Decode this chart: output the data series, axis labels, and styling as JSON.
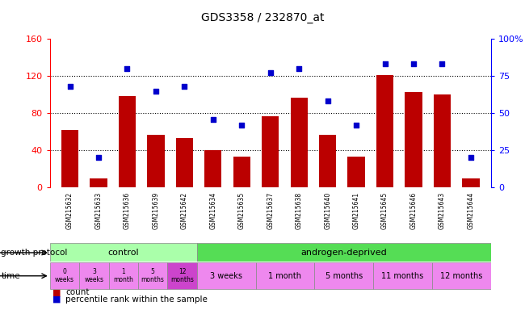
{
  "title": "GDS3358 / 232870_at",
  "samples": [
    "GSM215632",
    "GSM215633",
    "GSM215636",
    "GSM215639",
    "GSM215642",
    "GSM215634",
    "GSM215635",
    "GSM215637",
    "GSM215638",
    "GSM215640",
    "GSM215641",
    "GSM215645",
    "GSM215646",
    "GSM215643",
    "GSM215644"
  ],
  "counts": [
    62,
    10,
    98,
    57,
    53,
    40,
    33,
    77,
    97,
    57,
    33,
    121,
    103,
    100,
    10
  ],
  "percentiles": [
    68,
    20,
    80,
    65,
    68,
    46,
    42,
    77,
    80,
    58,
    42,
    83,
    83,
    83,
    20
  ],
  "ylim_left": [
    0,
    160
  ],
  "ylim_right": [
    0,
    100
  ],
  "yticks_left": [
    0,
    40,
    80,
    120,
    160
  ],
  "yticks_right": [
    0,
    25,
    50,
    75,
    100
  ],
  "bar_color": "#bb0000",
  "dot_color": "#0000cc",
  "bg_color": "#ffffff",
  "control_color": "#aaffaa",
  "androgen_color": "#55dd55",
  "time_color": "#ee88ee",
  "time_color_dark": "#cc44cc",
  "header_bg": "#c8c8c8",
  "control_n": 5,
  "total_n": 15
}
